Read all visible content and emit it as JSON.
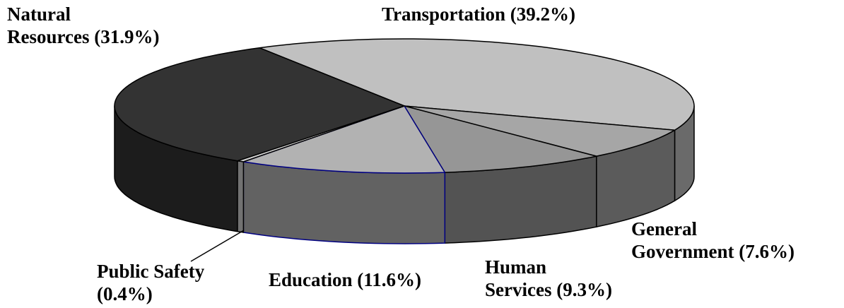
{
  "chart_data": {
    "type": "pie",
    "categories": [
      "Transportation",
      "General Government",
      "Human Services",
      "Education",
      "Public Safety",
      "Natural Resources"
    ],
    "values": [
      39.2,
      7.6,
      9.3,
      11.6,
      0.4,
      31.9
    ],
    "value_labels": [
      "(39.2%)",
      "(7.6%)",
      "(9.3%)",
      "(11.6%)",
      "(0.4%)",
      "(31.9%)"
    ],
    "colors": [
      "#c0c0c0",
      "#a6a6a6",
      "#969696",
      "#b2b2b2",
      "#d0d0d0",
      "#333333"
    ],
    "outline_colors": [
      "#000000",
      "#000000",
      "#000000",
      "#000080",
      "#000000",
      "#000000"
    ]
  }
}
